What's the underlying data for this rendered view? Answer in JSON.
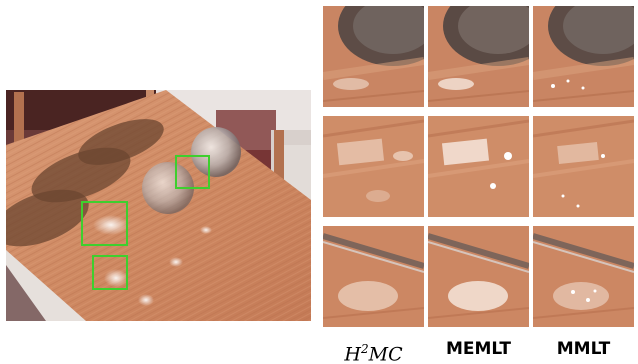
{
  "figure": {
    "labels": {
      "col1_base": "H",
      "col1_sup": "2",
      "col1_rest": "MC",
      "col2": "MEMLT",
      "col3": "MMLT"
    },
    "colors": {
      "wood_light": "#d9906a",
      "wood_mid": "#c47a58",
      "wood_dark": "#a35f43",
      "highlight_box": "#3ecf2e",
      "wall": "#e9e3e0",
      "floor": "#5a2a2a"
    }
  }
}
